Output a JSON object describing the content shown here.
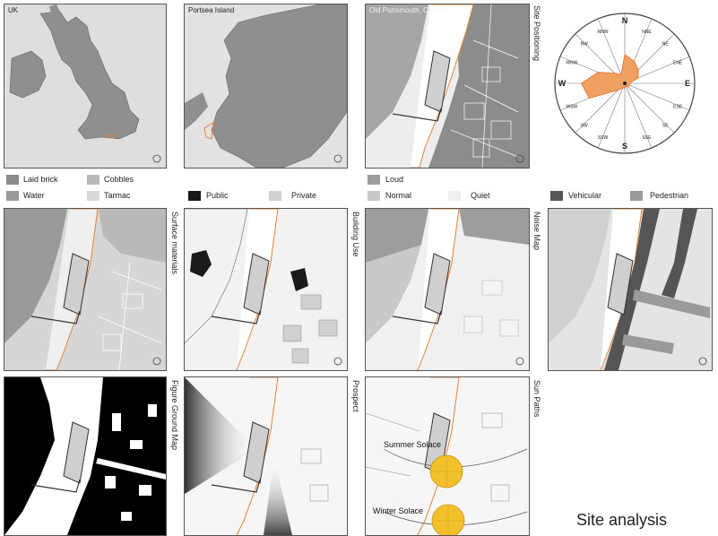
{
  "panels": {
    "uk": {
      "title": "UK"
    },
    "portsea": {
      "title": "Portsea Island"
    },
    "old_portsmouth": {
      "title": "Old Portsmouth, Camber"
    }
  },
  "side_labels": {
    "site_positioning": "Site Positioning",
    "surface_materials": "Surface materials",
    "building_use": "Building Use",
    "noise_map": "Noise Map",
    "figure_ground": "Figure Ground Map",
    "prospect": "Prospect",
    "sun_paths": "Sun Paths"
  },
  "legends": {
    "surface": [
      {
        "label": "Laid brick",
        "color": "#8c8c8c"
      },
      {
        "label": "Cobbles",
        "color": "#b9b9b9"
      },
      {
        "label": "Water",
        "color": "#9a9a9a"
      },
      {
        "label": "Tarmac",
        "color": "#d9d9d9"
      }
    ],
    "use": [
      {
        "label": "Public",
        "color": "#1a1a1a"
      },
      {
        "label": "Private",
        "color": "#d0d0d0"
      }
    ],
    "noise": [
      {
        "label": "Loud",
        "color": "#9d9d9d"
      },
      {
        "label": "Normal",
        "color": "#c9c9c9"
      },
      {
        "label": "Quiet",
        "color": "#f0f0f0"
      }
    ],
    "traffic": [
      {
        "label": "Vehicular",
        "color": "#555555"
      },
      {
        "label": "Pedestrian",
        "color": "#9a9a9a"
      }
    ]
  },
  "compass": {
    "directions": [
      "N",
      "NNE",
      "NE",
      "ENE",
      "E",
      "ESE",
      "SE",
      "SSE",
      "S",
      "SSW",
      "SW",
      "WSW",
      "W",
      "WNW",
      "NW",
      "NNW"
    ],
    "wind_values": [
      3,
      2.5,
      2,
      1.5,
      0.5,
      0.5,
      0.5,
      0.3,
      0.5,
      0.5,
      1,
      4,
      4.5,
      3,
      1.5,
      1
    ],
    "fill_color": "#f0a060",
    "stroke_color": "#e07030"
  },
  "sun": {
    "summer_label": "Summer Solace",
    "winter_label": "Winter Solace",
    "color": "#f2c02a"
  },
  "site_color": "#e8833a",
  "caption": "Site analysis"
}
